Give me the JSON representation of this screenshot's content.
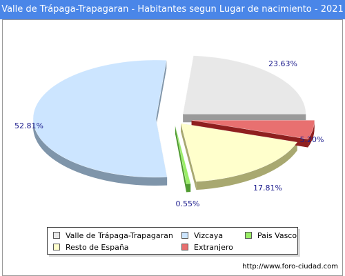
{
  "title": "Valle de Trápaga-Trapagaran - Habitantes segun Lugar de nacimiento - 2021",
  "footer": "http://www.foro-ciudad.com",
  "chart_data": {
    "type": "pie",
    "title": "Valle de Trápaga-Trapagaran - Habitantes segun Lugar de nacimiento - 2021",
    "categories": [
      "Valle de Trápaga-Trapagaran",
      "Vizcaya",
      "Pais Vasco",
      "Resto de España",
      "Extranjero"
    ],
    "values": [
      23.63,
      52.81,
      0.55,
      17.81,
      5.2
    ],
    "value_labels": [
      "23.63%",
      "52.81%",
      "0.55%",
      "17.81%",
      "5.20%"
    ],
    "colors": [
      "#e8e8e8",
      "#cce5ff",
      "#99ee66",
      "#ffffcc",
      "#e87070"
    ],
    "side_colors": [
      "#9a9a9a",
      "#7f95aa",
      "#4f9a30",
      "#a8a870",
      "#8f1f1f"
    ],
    "legend_position": "bottom",
    "style": "exploded-3d"
  }
}
